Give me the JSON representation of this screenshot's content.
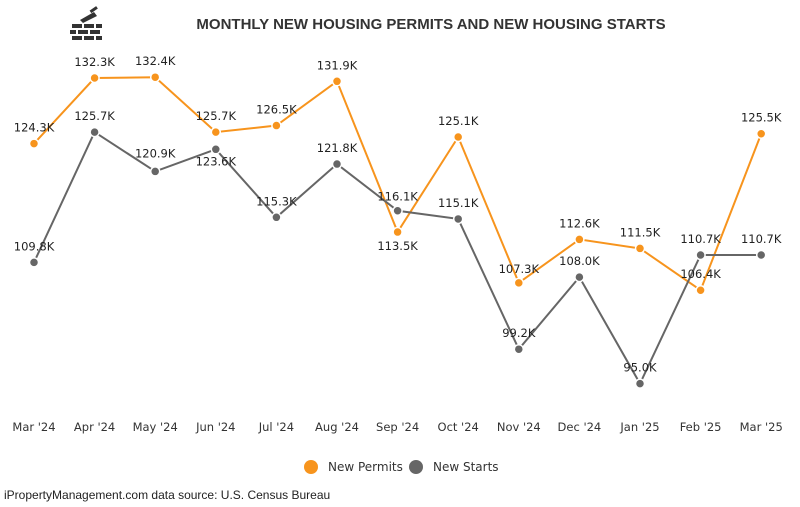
{
  "colors": {
    "permits": "#F7941D",
    "starts": "#666666",
    "title": "#333333"
  },
  "logo": {
    "icon": "brick-wall-trowel-icon"
  },
  "source_text": "iPropertyManagement.com data source: U.S. Census Bureau",
  "chart_data": {
    "type": "line",
    "title": "MONTHLY NEW HOUSING PERMITS AND NEW HOUSING STARTS",
    "xlabel": "",
    "ylabel": "",
    "grid": false,
    "legend_position": "bottom-center",
    "ylim": [
      93.0,
      134.5
    ],
    "categories": [
      "Mar '24",
      "Apr '24",
      "May '24",
      "Jun '24",
      "Jul '24",
      "Aug '24",
      "Sep '24",
      "Oct '24",
      "Nov '24",
      "Dec '24",
      "Jan '25",
      "Feb '25",
      "Mar '25"
    ],
    "series": [
      {
        "name": "New Permits",
        "color": "#F7941D",
        "values": [
          124.3,
          132.3,
          132.4,
          125.7,
          126.5,
          131.9,
          113.5,
          125.1,
          107.3,
          112.6,
          111.5,
          106.4,
          125.5
        ],
        "labels": [
          "124.3K",
          "132.3K",
          "132.4K",
          "125.7K",
          "126.5K",
          "131.9K",
          "113.5K",
          "125.1K",
          "107.3K",
          "112.6K",
          "111.5K",
          "106.4K",
          "125.5K"
        ]
      },
      {
        "name": "New Starts",
        "color": "#666666",
        "values": [
          109.8,
          125.7,
          120.9,
          123.6,
          115.3,
          121.8,
          116.1,
          115.1,
          99.2,
          108.0,
          95.0,
          110.7,
          110.7
        ],
        "labels": [
          "109.8K",
          "125.7K",
          "120.9K",
          "123.6K",
          "115.3K",
          "121.8K",
          "116.1K",
          "115.1K",
          "99.2K",
          "108.0K",
          "95.0K",
          "110.7K",
          "110.7K"
        ]
      }
    ]
  }
}
